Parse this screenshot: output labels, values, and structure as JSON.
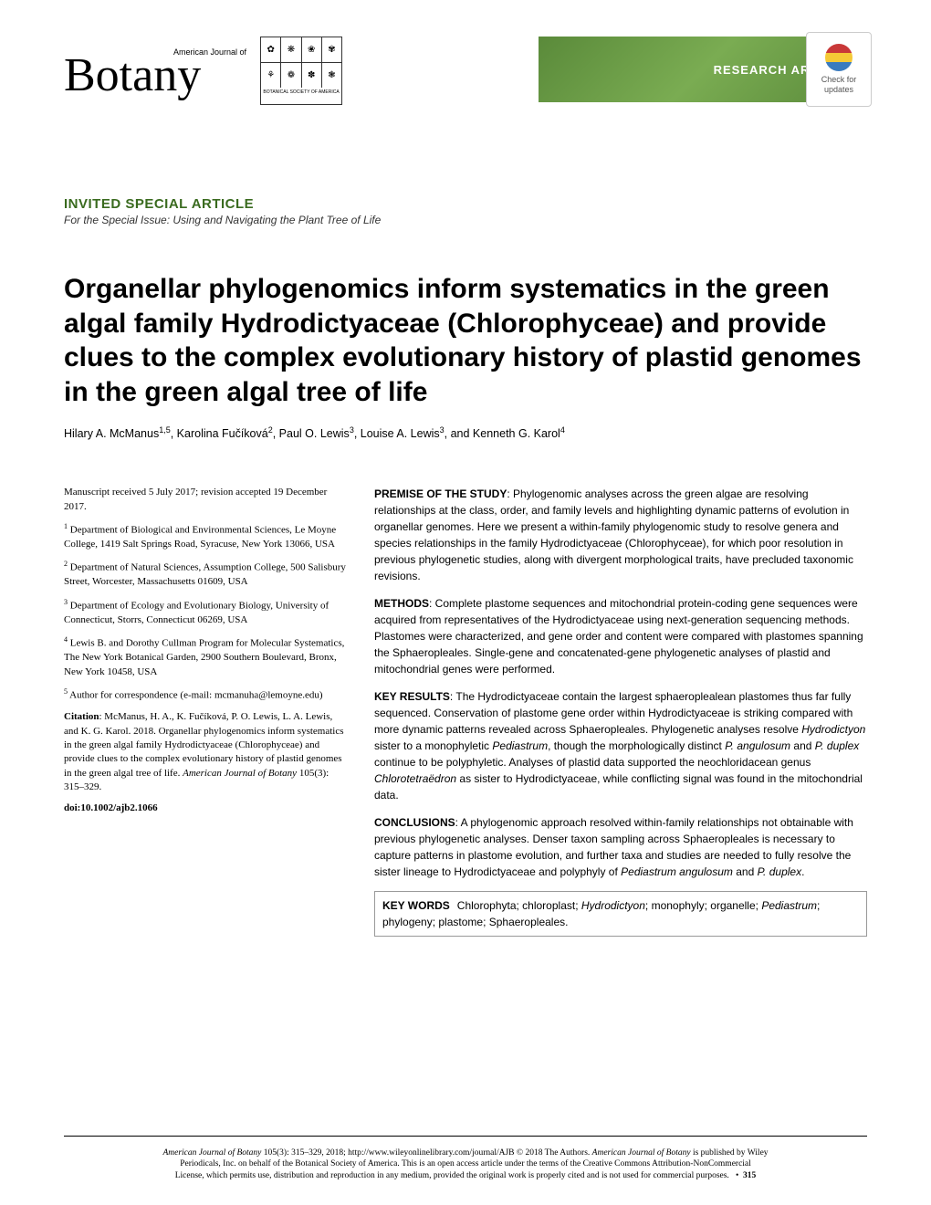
{
  "header": {
    "journal_small": "American Journal of",
    "journal_main": "Botany",
    "bsa_text": "BOTANICAL SOCIETY OF AMERICA",
    "research_badge": "RESEARCH ARTICLE",
    "check_updates": "Check for updates"
  },
  "invited": {
    "title": "INVITED SPECIAL ARTICLE",
    "subtitle": "For the Special Issue: Using and Navigating the Plant Tree of Life"
  },
  "title": "Organellar phylogenomics inform systematics in the green algal family Hydrodictyaceae (Chlorophyceae) and provide clues to the complex evolutionary history of plastid genomes in the green algal tree of life",
  "authors_html": "Hilary A. McManus<sup>1,5</sup>, Karolina Fučíková<sup>2</sup>, Paul O. Lewis<sup>3</sup>, Louise A. Lewis<sup>3</sup>, and Kenneth G. Karol<sup>4</sup>",
  "left": {
    "received": "Manuscript received 5 July 2017; revision accepted 19 December 2017.",
    "aff1": "<sup>1</sup> Department of Biological and Environmental Sciences, Le Moyne College, 1419 Salt Springs Road, Syracuse, New York 13066, USA",
    "aff2": "<sup>2</sup> Department of Natural Sciences, Assumption College, 500 Salisbury Street, Worcester, Massachusetts 01609, USA",
    "aff3": "<sup>3</sup> Department of Ecology and Evolutionary Biology, University of Connecticut, Storrs, Connecticut 06269, USA",
    "aff4": "<sup>4</sup> Lewis B. and Dorothy Cullman Program for Molecular Systematics, The New York Botanical Garden, 2900 Southern Boulevard, Bronx, New York 10458, USA",
    "aff5": "<sup>5</sup> Author for correspondence (e-mail: mcmanuha@lemoyne.edu)",
    "citation_label": "Citation",
    "citation_text": ": McManus, H. A., K. Fučíková, P. O. Lewis, L. A. Lewis, and K. G. Karol. 2018. Organellar phylogenomics inform systematics in the green algal family Hydrodictyaceae (Chlorophyceae) and provide clues to the complex evolutionary history of plastid genomes in the green algal tree of life. ",
    "citation_journal": "American Journal of Botany",
    "citation_pages": " 105(3): 315–329.",
    "doi": "doi:10.1002/ajb2.1066"
  },
  "abstract": {
    "premise_label": "PREMISE OF THE STUDY",
    "premise": ": Phylogenomic analyses across the green algae are resolving relationships at the class, order, and family levels and highlighting dynamic patterns of evolution in organellar genomes. Here we present a within-family phylogenomic study to resolve genera and species relationships in the family Hydrodictyaceae (Chlorophyceae), for which poor resolution in previous phylogenetic studies, along with divergent morphological traits, have precluded taxonomic revisions.",
    "methods_label": "METHODS",
    "methods": ": Complete plastome sequences and mitochondrial protein-coding gene sequences were acquired from representatives of the Hydrodictyaceae using next-generation sequencing methods. Plastomes were characterized, and gene order and content were compared with plastomes spanning the Sphaeropleales. Single-gene and concatenated-gene phylogenetic analyses of plastid and mitochondrial genes were performed.",
    "results_label": "KEY RESULTS",
    "results_p1": ": The Hydrodictyaceae contain the largest sphaeroplealean plastomes thus far fully sequenced. Conservation of plastome gene order within Hydrodictyaceae is striking compared with more dynamic patterns revealed across Sphaeropleales. Phylogenetic analyses resolve ",
    "results_i1": "Hydrodictyon",
    "results_p2": " sister to a monophyletic ",
    "results_i2": "Pediastrum",
    "results_p3": ", though the morphologically distinct ",
    "results_i3": "P. angulosum",
    "results_p4": " and ",
    "results_i4": "P. duplex",
    "results_p5": " continue to be polyphyletic. Analyses of plastid data supported the neochloridacean genus ",
    "results_i5": "Chlorotetraëdron",
    "results_p6": " as sister to Hydrodictyaceae, while conflicting signal was found in the mitochondrial data.",
    "conclusions_label": "CONCLUSIONS",
    "conclusions_p1": ": A phylogenomic approach resolved within-family relationships not obtainable with previous phylogenetic analyses. Denser taxon sampling across Sphaeropleales is necessary to capture patterns in plastome evolution, and further taxa and studies are needed to fully resolve the sister lineage to Hydrodictyaceae and polyphyly of ",
    "conclusions_i1": "Pediastrum angulosum",
    "conclusions_p2": " and ",
    "conclusions_i2": "P. duplex",
    "conclusions_p3": ".",
    "keywords_label": "KEY WORDS",
    "keywords_p1": "Chlorophyta; chloroplast; ",
    "keywords_i1": "Hydrodictyon",
    "keywords_p2": "; monophyly; organelle; ",
    "keywords_i2": "Pediastrum",
    "keywords_p3": "; phylogeny; plastome; Sphaeropleales."
  },
  "footer": {
    "p1a": "American Journal of Botany",
    "p1b": " 105(3): 315–329, 2018; http://www.wileyonlinelibrary.com/journal/AJB © 2018 The Authors. ",
    "p1c": "American Journal of Botany",
    "p1d": " is published by Wiley",
    "p2": "Periodicals, Inc. on behalf of the Botanical Society of America. This is an open access article under the terms of the Creative Commons Attribution-NonCommercial",
    "p3a": "License, which permits use, distribution and reproduction in any medium, provided the original work is properly cited and is not used for commercial purposes.",
    "page_num": "315"
  }
}
